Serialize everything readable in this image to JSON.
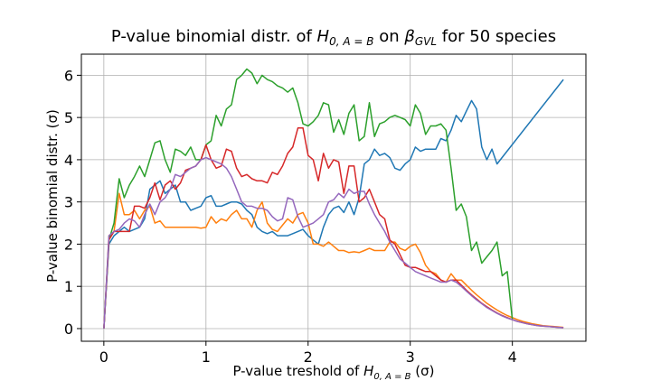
{
  "chart_data": {
    "type": "line",
    "title": "P-value binomial distr. of H_{0,A=B} on β_{GVL} for 50 species",
    "title_parts": {
      "prefix": "P-value binomial distr. of ",
      "h_main": "H",
      "h_sub": "0, A = B",
      "mid": " on ",
      "beta_main": "β",
      "beta_sub": "GVL",
      "suffix": " for 50 species"
    },
    "xlabel": "P-value treshold of H_{0,A=B} (σ)",
    "xlabel_parts": {
      "prefix": "P-value treshold of ",
      "h_main": "H",
      "h_sub": "0, A = B",
      "suffix": " (σ)"
    },
    "ylabel": "P-value binomial distr. (σ)",
    "xlim": [
      -0.22,
      4.72
    ],
    "ylim": [
      -0.3,
      6.5
    ],
    "xticks": [
      0,
      1,
      2,
      3,
      4
    ],
    "yticks": [
      0,
      1,
      2,
      3,
      4,
      5,
      6
    ],
    "grid": true,
    "series": [
      {
        "color": "#1f77b4",
        "x": [
          0,
          0.05,
          0.1,
          0.15,
          0.2,
          0.25,
          0.3,
          0.35,
          0.4,
          0.45,
          0.5,
          0.55,
          0.6,
          0.65,
          0.7,
          0.75,
          0.8,
          0.85,
          0.9,
          0.95,
          1.0,
          1.05,
          1.1,
          1.15,
          1.2,
          1.25,
          1.3,
          1.35,
          1.4,
          1.45,
          1.5,
          1.55,
          1.6,
          1.65,
          1.7,
          1.75,
          1.8,
          1.85,
          1.9,
          1.95,
          2.0,
          2.05,
          2.1,
          2.15,
          2.2,
          2.25,
          2.3,
          2.35,
          2.4,
          2.45,
          2.5,
          2.55,
          2.6,
          2.65,
          2.7,
          2.75,
          2.8,
          2.85,
          2.9,
          2.95,
          3.0,
          3.05,
          3.1,
          3.15,
          3.2,
          3.25,
          3.3,
          3.35,
          3.4,
          3.45,
          3.5,
          3.55,
          3.6,
          3.65,
          3.7,
          3.75,
          3.8,
          3.85,
          4.5
        ],
        "values": [
          0,
          2.0,
          2.2,
          2.3,
          2.4,
          2.3,
          2.35,
          2.4,
          2.6,
          3.3,
          3.4,
          3.5,
          3.2,
          3.3,
          3.4,
          3.0,
          3.0,
          2.8,
          2.85,
          2.9,
          3.1,
          3.15,
          2.9,
          2.9,
          2.95,
          3.0,
          3.0,
          2.95,
          2.8,
          2.7,
          2.4,
          2.3,
          2.25,
          2.3,
          2.2,
          2.2,
          2.2,
          2.25,
          2.3,
          2.35,
          2.2,
          2.1,
          2.0,
          2.4,
          2.7,
          2.85,
          2.9,
          2.75,
          3.0,
          2.7,
          3.1,
          3.9,
          4.0,
          4.25,
          4.1,
          4.15,
          4.05,
          3.8,
          3.75,
          3.9,
          4.0,
          4.3,
          4.2,
          4.25,
          4.25,
          4.25,
          4.5,
          4.45,
          4.7,
          5.05,
          4.9,
          5.15,
          5.4,
          5.2,
          4.3,
          4.0,
          4.25,
          3.9,
          5.9
        ]
      },
      {
        "color": "#ff7f0e",
        "x": [
          0,
          0.05,
          0.1,
          0.15,
          0.2,
          0.25,
          0.3,
          0.35,
          0.4,
          0.45,
          0.5,
          0.55,
          0.6,
          0.65,
          0.7,
          0.75,
          0.8,
          0.85,
          0.9,
          0.95,
          1.0,
          1.05,
          1.1,
          1.15,
          1.2,
          1.25,
          1.3,
          1.35,
          1.4,
          1.45,
          1.5,
          1.55,
          1.6,
          1.65,
          1.7,
          1.75,
          1.8,
          1.85,
          1.9,
          1.95,
          2.0,
          2.05,
          2.1,
          2.15,
          2.2,
          2.25,
          2.3,
          2.35,
          2.4,
          2.45,
          2.5,
          2.55,
          2.6,
          2.65,
          2.7,
          2.75,
          2.8,
          2.85,
          2.9,
          2.95,
          3.0,
          3.05,
          3.1,
          3.15,
          3.2,
          3.25,
          3.3,
          3.35,
          3.4,
          3.45,
          3.5,
          3.55,
          3.6,
          3.65,
          3.7,
          3.75,
          3.8,
          3.85,
          3.9,
          3.95,
          4.0,
          4.05,
          4.1,
          4.15,
          4.2,
          4.25,
          4.3,
          4.35,
          4.4,
          4.45,
          4.5
        ],
        "values": [
          0,
          2.2,
          2.3,
          3.2,
          2.7,
          2.7,
          2.8,
          2.6,
          2.8,
          2.9,
          2.5,
          2.55,
          2.4,
          2.4,
          2.4,
          2.4,
          2.4,
          2.4,
          2.4,
          2.38,
          2.4,
          2.65,
          2.5,
          2.6,
          2.55,
          2.7,
          2.8,
          2.6,
          2.6,
          2.4,
          2.8,
          3.0,
          2.5,
          2.35,
          2.3,
          2.45,
          2.6,
          2.5,
          2.7,
          2.75,
          2.5,
          2.0,
          2.0,
          1.95,
          2.05,
          1.95,
          1.85,
          1.85,
          1.8,
          1.82,
          1.8,
          1.85,
          1.9,
          1.85,
          1.85,
          1.85,
          2.05,
          2.05,
          1.9,
          1.85,
          1.95,
          2.0,
          1.8,
          1.5,
          1.35,
          1.3,
          1.15,
          1.1,
          1.3,
          1.15,
          1.15,
          1.03,
          0.91,
          0.8,
          0.7,
          0.6,
          0.52,
          0.44,
          0.37,
          0.31,
          0.26,
          0.21,
          0.17,
          0.14,
          0.11,
          0.09,
          0.07,
          0.06,
          0.05,
          0.04,
          0.03
        ]
      },
      {
        "color": "#2ca02c",
        "x": [
          0,
          0.05,
          0.1,
          0.15,
          0.2,
          0.25,
          0.3,
          0.35,
          0.4,
          0.45,
          0.5,
          0.55,
          0.6,
          0.65,
          0.7,
          0.75,
          0.8,
          0.85,
          0.9,
          0.95,
          1.0,
          1.05,
          1.1,
          1.15,
          1.2,
          1.25,
          1.3,
          1.35,
          1.4,
          1.45,
          1.5,
          1.55,
          1.6,
          1.65,
          1.7,
          1.75,
          1.8,
          1.85,
          1.9,
          1.95,
          2.0,
          2.05,
          2.1,
          2.15,
          2.2,
          2.25,
          2.3,
          2.35,
          2.4,
          2.45,
          2.5,
          2.55,
          2.6,
          2.65,
          2.7,
          2.75,
          2.8,
          2.85,
          2.9,
          2.95,
          3.0,
          3.05,
          3.1,
          3.15,
          3.2,
          3.25,
          3.3,
          3.35,
          3.4,
          3.45,
          3.5,
          3.55,
          3.6,
          3.65,
          3.7,
          3.75,
          3.8,
          3.85,
          3.9,
          3.95,
          4.0
        ],
        "values": [
          0,
          2.1,
          2.5,
          3.55,
          3.1,
          3.4,
          3.6,
          3.85,
          3.6,
          4.0,
          4.4,
          4.45,
          4.0,
          3.7,
          4.25,
          4.2,
          4.1,
          4.3,
          4.0,
          4.0,
          4.35,
          4.45,
          5.05,
          4.8,
          5.2,
          5.3,
          5.9,
          6.0,
          6.15,
          6.05,
          5.8,
          6.0,
          5.9,
          5.85,
          5.75,
          5.7,
          5.6,
          5.7,
          5.35,
          4.85,
          4.8,
          4.9,
          5.05,
          5.35,
          5.3,
          4.65,
          4.95,
          4.6,
          5.1,
          5.3,
          4.45,
          4.55,
          5.35,
          4.55,
          4.85,
          4.9,
          5.0,
          5.05,
          5.0,
          4.95,
          4.8,
          5.3,
          5.1,
          4.6,
          4.8,
          4.8,
          4.85,
          4.7,
          3.8,
          2.8,
          2.95,
          2.65,
          1.85,
          2.05,
          1.55,
          1.7,
          1.85,
          2.05,
          1.25,
          1.35,
          0.2
        ]
      },
      {
        "color": "#d62728",
        "x": [
          0,
          0.05,
          0.1,
          0.15,
          0.2,
          0.25,
          0.3,
          0.35,
          0.4,
          0.45,
          0.5,
          0.55,
          0.6,
          0.65,
          0.7,
          0.75,
          0.8,
          0.85,
          0.9,
          0.95,
          1.0,
          1.05,
          1.1,
          1.15,
          1.2,
          1.25,
          1.3,
          1.35,
          1.4,
          1.45,
          1.5,
          1.55,
          1.6,
          1.65,
          1.7,
          1.75,
          1.8,
          1.85,
          1.9,
          1.95,
          2.0,
          2.05,
          2.1,
          2.15,
          2.2,
          2.25,
          2.3,
          2.35,
          2.4,
          2.45,
          2.5,
          2.55,
          2.6,
          2.65,
          2.7,
          2.75,
          2.8,
          2.85,
          2.9,
          2.95,
          3.0,
          3.05,
          3.1,
          3.15,
          3.2,
          3.25,
          3.3,
          3.35,
          3.4,
          3.45,
          3.5,
          3.55,
          3.6,
          3.65,
          3.7,
          3.75,
          3.8,
          3.85,
          3.9,
          3.95,
          4.0,
          4.05,
          4.1,
          4.15,
          4.2,
          4.25,
          4.3,
          4.35,
          4.4,
          4.45,
          4.5
        ],
        "values": [
          0,
          2.1,
          2.3,
          2.3,
          2.3,
          2.3,
          2.9,
          2.9,
          2.85,
          3.1,
          3.45,
          3.05,
          3.4,
          3.5,
          3.3,
          3.45,
          3.75,
          3.8,
          3.85,
          4.0,
          4.35,
          4.0,
          3.8,
          3.85,
          4.25,
          4.2,
          3.8,
          3.6,
          3.65,
          3.55,
          3.5,
          3.5,
          3.45,
          3.7,
          3.65,
          3.85,
          4.15,
          4.3,
          4.75,
          4.75,
          4.1,
          4.0,
          3.5,
          4.15,
          3.8,
          4.0,
          3.95,
          3.2,
          3.85,
          3.85,
          3.0,
          3.1,
          3.3,
          3.0,
          2.7,
          2.6,
          2.1,
          2.0,
          1.75,
          1.5,
          1.45,
          1.45,
          1.4,
          1.35,
          1.35,
          1.25,
          1.15,
          1.1,
          1.15,
          1.15,
          1.03,
          0.91,
          0.8,
          0.7,
          0.6,
          0.52,
          0.44,
          0.37,
          0.31,
          0.26,
          0.21,
          0.17,
          0.14,
          0.11,
          0.09,
          0.07,
          0.06,
          0.05,
          0.04,
          0.03,
          0.02
        ]
      },
      {
        "color": "#9467bd",
        "x": [
          0,
          0.05,
          0.1,
          0.15,
          0.2,
          0.25,
          0.3,
          0.35,
          0.4,
          0.45,
          0.5,
          0.55,
          0.6,
          0.65,
          0.7,
          0.75,
          0.8,
          0.85,
          0.9,
          0.95,
          1.0,
          1.05,
          1.1,
          1.15,
          1.2,
          1.25,
          1.3,
          1.35,
          1.4,
          1.45,
          1.5,
          1.55,
          1.6,
          1.65,
          1.7,
          1.75,
          1.8,
          1.85,
          1.9,
          1.95,
          2.0,
          2.05,
          2.1,
          2.15,
          2.2,
          2.25,
          2.3,
          2.35,
          2.4,
          2.45,
          2.5,
          2.55,
          2.6,
          2.65,
          2.7,
          2.75,
          2.8,
          2.85,
          2.9,
          2.95,
          3.0,
          3.05,
          3.1,
          3.15,
          3.2,
          3.25,
          3.3,
          3.35,
          3.4,
          3.45,
          3.5,
          3.55,
          3.6,
          3.65,
          3.7,
          3.75,
          3.8,
          3.85,
          3.9,
          3.95,
          4.0,
          4.05,
          4.1,
          4.15,
          4.2,
          4.25,
          4.3,
          4.35,
          4.4,
          4.45,
          4.5
        ],
        "values": [
          0,
          2.2,
          2.3,
          2.35,
          2.5,
          2.6,
          2.55,
          2.4,
          2.7,
          2.95,
          2.7,
          3.0,
          3.1,
          3.3,
          3.65,
          3.6,
          3.7,
          3.8,
          3.85,
          4.0,
          4.05,
          4.0,
          3.95,
          3.9,
          3.8,
          3.6,
          3.3,
          3.0,
          2.9,
          2.9,
          2.85,
          2.85,
          2.8,
          2.65,
          2.55,
          2.6,
          3.1,
          3.05,
          2.65,
          2.4,
          2.45,
          2.5,
          2.6,
          2.7,
          3.0,
          3.05,
          3.2,
          3.1,
          3.3,
          3.2,
          3.25,
          3.25,
          2.95,
          2.7,
          2.5,
          2.3,
          2.05,
          1.85,
          1.65,
          1.55,
          1.45,
          1.35,
          1.3,
          1.25,
          1.2,
          1.15,
          1.1,
          1.1,
          1.15,
          1.1,
          1.0,
          0.89,
          0.78,
          0.68,
          0.59,
          0.5,
          0.43,
          0.36,
          0.3,
          0.25,
          0.21,
          0.17,
          0.14,
          0.11,
          0.09,
          0.07,
          0.06,
          0.05,
          0.04,
          0.03,
          0.02
        ]
      }
    ]
  }
}
